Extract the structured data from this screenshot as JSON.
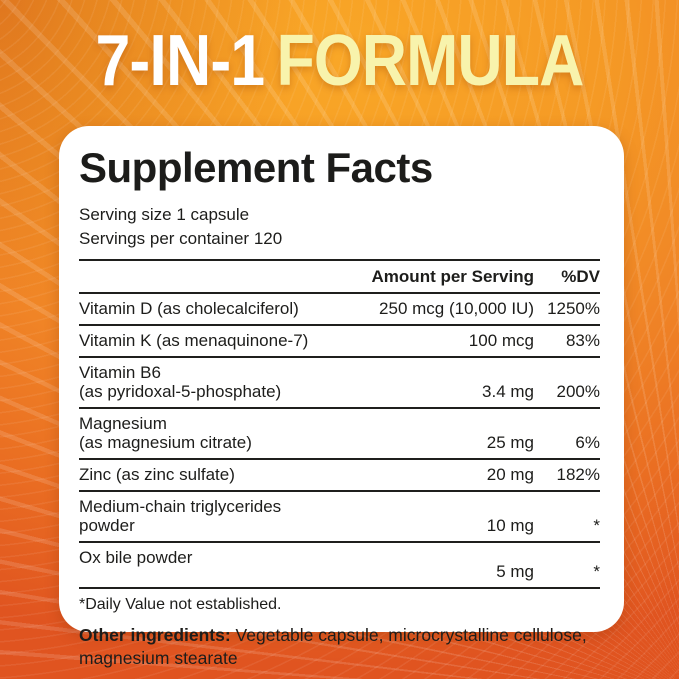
{
  "banner": {
    "part1": "7-IN-1",
    "part2": "FORMULA"
  },
  "panel": {
    "title": "Supplement Facts",
    "serving_size": "Serving size 1 capsule",
    "servings_per_container": "Servings per container 120",
    "columns": {
      "amount": "Amount per Serving",
      "dv": "%DV"
    },
    "rows": [
      {
        "name": "Vitamin D (as cholecalciferol)",
        "name2": "",
        "amount": "250 mcg (10,000 IU)",
        "dv": "1250%"
      },
      {
        "name": "Vitamin K (as menaquinone-7)",
        "name2": "",
        "amount": "100 mcg",
        "dv": "83%"
      },
      {
        "name": "Vitamin B6",
        "name2": "(as pyridoxal-5-phosphate)",
        "amount": "3.4 mg",
        "dv": "200%"
      },
      {
        "name": "Magnesium",
        "name2": "(as magnesium citrate)",
        "amount": "25 mg",
        "dv": "6%"
      },
      {
        "name": "Zinc (as zinc sulfate)",
        "name2": "",
        "amount": "20 mg",
        "dv": "182%"
      },
      {
        "name": "Medium-chain triglycerides powder",
        "name2": "",
        "amount": "10 mg",
        "dv": "*"
      },
      {
        "name": "Ox bile powder",
        "name2": "",
        "amount": "5 mg",
        "dv": "*"
      }
    ],
    "footnote": "*Daily Value not established.",
    "other_ingredients_label": "Other ingredients:",
    "other_ingredients_text": " Vegetable capsule, microcrystalline cellulose, magnesium stearate"
  },
  "colors": {
    "background_orange": "#F08526",
    "background_top": "#F9A727",
    "background_bottom": "#E05420",
    "banner_white": "#FFFFFF",
    "banner_yellow": "#F8F3AC",
    "card_white": "#FFFFFF",
    "text_black": "#1D1D1B"
  }
}
